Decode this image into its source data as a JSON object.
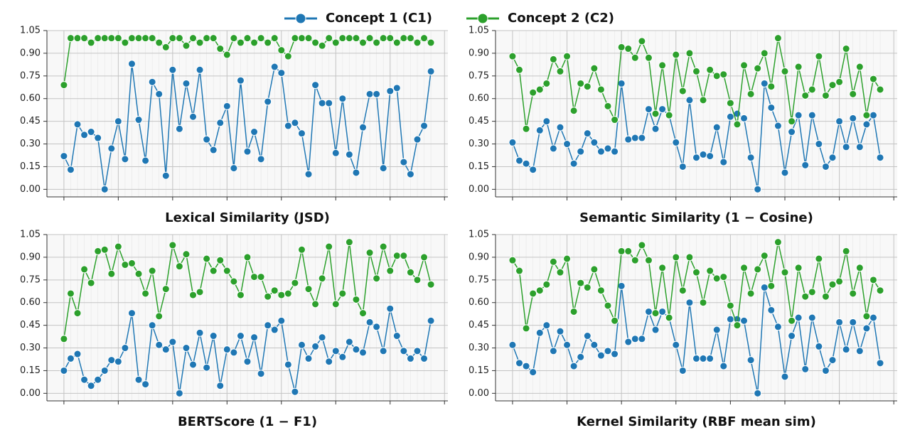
{
  "chart_data": [
    {
      "type": "line",
      "title": "Lexical Similarity (JSD)",
      "x": [
        0,
        1,
        2,
        3,
        4,
        5,
        6,
        7,
        8,
        9,
        10,
        11,
        12,
        13,
        14,
        15,
        16,
        17,
        18,
        19,
        20,
        21,
        22,
        23,
        24,
        25,
        26,
        27,
        28,
        29,
        30,
        31,
        32,
        33,
        34,
        35,
        36,
        37,
        38,
        39,
        40,
        41,
        42,
        43,
        44,
        45,
        46,
        47,
        48,
        49,
        50,
        51,
        52,
        53,
        54
      ],
      "xlim": [
        -2.5,
        56.5
      ],
      "xticks": [
        0,
        8,
        16,
        24,
        32,
        40,
        48,
        56
      ],
      "xtick_labels": false,
      "ylim": [
        -0.05,
        1.05
      ],
      "yticks": [
        {
          "value": 0,
          "label": "0.00"
        },
        0.15,
        {
          "value": 0.3,
          "label": "0.30"
        },
        0.45,
        {
          "value": 0.6,
          "label": "0.60"
        },
        0.75,
        {
          "value": 0.9,
          "label": "0.90"
        },
        1.05
      ],
      "grid": true,
      "series": [
        {
          "name": "Concept 1 (C1)",
          "color": "#1f77b4",
          "values": [
            0.22,
            0.13,
            0.43,
            0.36,
            0.38,
            0.34,
            0,
            0.27,
            0.45,
            0.2,
            0.83,
            0.46,
            0.19,
            0.71,
            0.63,
            0.09,
            0.79,
            0.4,
            0.7,
            0.48,
            0.79,
            0.33,
            0.26,
            0.44,
            0.55,
            0.14,
            0.72,
            0.25,
            0.38,
            0.2,
            0.58,
            0.81,
            0.77,
            0.42,
            0.44,
            0.37,
            0.1,
            0.69,
            0.57,
            0.57,
            0.24,
            0.6,
            0.23,
            0.11,
            0.41,
            0.63,
            0.63,
            0.14,
            0.65,
            0.67,
            0.18,
            0.1,
            0.33,
            0.42,
            0.78
          ]
        },
        {
          "name": "Concept 2 (C2)",
          "color": "#2ca02c",
          "values": [
            0.69,
            1,
            1,
            1,
            0.97,
            1,
            1,
            1,
            1,
            0.97,
            1,
            1,
            1,
            1,
            0.97,
            0.94,
            1,
            1,
            0.95,
            1,
            0.97,
            1,
            1,
            0.93,
            0.89,
            1,
            0.97,
            1,
            0.97,
            1,
            0.97,
            1,
            0.92,
            0.88,
            1,
            1,
            1,
            0.97,
            0.95,
            1,
            0.97,
            1,
            1,
            1,
            0.97,
            1,
            0.97,
            1,
            1,
            0.97,
            1,
            1,
            0.97,
            1,
            0.97
          ]
        }
      ]
    },
    {
      "type": "line",
      "title": "Semantic Similarity (1 − Cosine)",
      "x": [
        0,
        1,
        2,
        3,
        4,
        5,
        6,
        7,
        8,
        9,
        10,
        11,
        12,
        13,
        14,
        15,
        16,
        17,
        18,
        19,
        20,
        21,
        22,
        23,
        24,
        25,
        26,
        27,
        28,
        29,
        30,
        31,
        32,
        33,
        34,
        35,
        36,
        37,
        38,
        39,
        40,
        41,
        42,
        43,
        44,
        45,
        46,
        47,
        48,
        49,
        50,
        51,
        52,
        53,
        54
      ],
      "xlim": [
        -2.5,
        56.5
      ],
      "xticks": [
        0,
        8,
        16,
        24,
        32,
        40,
        48,
        56
      ],
      "xtick_labels": false,
      "ylim": [
        -0.05,
        1.05
      ],
      "yticks": [
        {
          "value": 0,
          "label": "0.00"
        },
        0.15,
        {
          "value": 0.3,
          "label": "0.30"
        },
        0.45,
        {
          "value": 0.6,
          "label": "0.60"
        },
        0.75,
        {
          "value": 0.9,
          "label": "0.90"
        },
        1.05
      ],
      "grid": true,
      "series": [
        {
          "color": "#1f77b4",
          "values": [
            0.31,
            0.19,
            0.17,
            0.13,
            0.39,
            0.45,
            0.27,
            0.41,
            0.3,
            0.17,
            0.25,
            0.37,
            0.31,
            0.25,
            0.27,
            0.25,
            0.7,
            0.33,
            0.34,
            0.34,
            0.53,
            0.4,
            0.53,
            0.49,
            0.31,
            0.15,
            0.59,
            0.21,
            0.23,
            0.22,
            0.41,
            0.18,
            0.48,
            0.5,
            0.47,
            0.21,
            0,
            0.7,
            0.54,
            0.42,
            0.11,
            0.38,
            0.49,
            0.16,
            0.49,
            0.3,
            0.15,
            0.21,
            0.45,
            0.28,
            0.47,
            0.28,
            0.43,
            0.49,
            0.21
          ]
        },
        {
          "color": "#2ca02c",
          "values": [
            0.88,
            0.79,
            0.4,
            0.64,
            0.66,
            0.7,
            0.86,
            0.78,
            0.88,
            0.52,
            0.7,
            0.68,
            0.8,
            0.66,
            0.55,
            0.46,
            0.94,
            0.93,
            0.87,
            0.98,
            0.87,
            0.5,
            0.82,
            0.49,
            0.89,
            0.65,
            0.9,
            0.78,
            0.59,
            0.79,
            0.75,
            0.76,
            0.57,
            0.43,
            0.82,
            0.63,
            0.8,
            0.9,
            0.68,
            1,
            0.78,
            0.45,
            0.81,
            0.62,
            0.66,
            0.88,
            0.62,
            0.69,
            0.71,
            0.93,
            0.63,
            0.81,
            0.49,
            0.73,
            0.66
          ]
        }
      ]
    },
    {
      "type": "line",
      "title": "BERTScore (1 − F1)",
      "x": [
        0,
        1,
        2,
        3,
        4,
        5,
        6,
        7,
        8,
        9,
        10,
        11,
        12,
        13,
        14,
        15,
        16,
        17,
        18,
        19,
        20,
        21,
        22,
        23,
        24,
        25,
        26,
        27,
        28,
        29,
        30,
        31,
        32,
        33,
        34,
        35,
        36,
        37,
        38,
        39,
        40,
        41,
        42,
        43,
        44,
        45,
        46,
        47,
        48,
        49,
        50,
        51,
        52,
        53,
        54
      ],
      "xlim": [
        -2.5,
        56.5
      ],
      "xticks": [
        0,
        8,
        16,
        24,
        32,
        40,
        48,
        56
      ],
      "xtick_labels": false,
      "ylim": [
        -0.05,
        1.05
      ],
      "yticks": [
        {
          "value": 0,
          "label": "0.00"
        },
        0.15,
        {
          "value": 0.3,
          "label": "0.30"
        },
        0.45,
        {
          "value": 0.6,
          "label": "0.60"
        },
        0.75,
        {
          "value": 0.9,
          "label": "0.90"
        },
        1.05
      ],
      "grid": true,
      "series": [
        {
          "color": "#1f77b4",
          "values": [
            0.15,
            0.23,
            0.26,
            0.09,
            0.05,
            0.09,
            0.15,
            0.22,
            0.21,
            0.3,
            0.53,
            0.09,
            0.06,
            0.45,
            0.32,
            0.29,
            0.34,
            0,
            0.3,
            0.19,
            0.4,
            0.17,
            0.38,
            0.05,
            0.29,
            0.27,
            0.38,
            0.21,
            0.37,
            0.13,
            0.45,
            0.42,
            0.48,
            0.19,
            0.01,
            0.32,
            0.23,
            0.31,
            0.37,
            0.21,
            0.28,
            0.24,
            0.34,
            0.29,
            0.27,
            0.47,
            0.44,
            0.28,
            0.56,
            0.38,
            0.28,
            0.23,
            0.28,
            0.23,
            0.48
          ]
        },
        {
          "color": "#2ca02c",
          "values": [
            0.36,
            0.66,
            0.53,
            0.82,
            0.73,
            0.94,
            0.95,
            0.79,
            0.97,
            0.85,
            0.86,
            0.79,
            0.66,
            0.81,
            0.51,
            0.69,
            0.98,
            0.84,
            0.92,
            0.65,
            0.67,
            0.89,
            0.81,
            0.88,
            0.81,
            0.74,
            0.65,
            0.9,
            0.77,
            0.77,
            0.64,
            0.68,
            0.65,
            0.66,
            0.73,
            0.95,
            0.69,
            0.59,
            0.76,
            0.97,
            0.59,
            0.66,
            1,
            0.62,
            0.53,
            0.93,
            0.76,
            0.97,
            0.81,
            0.91,
            0.91,
            0.8,
            0.75,
            0.9,
            0.72
          ]
        }
      ]
    },
    {
      "type": "line",
      "title": "Kernel Similarity (RBF mean sim)",
      "x": [
        0,
        1,
        2,
        3,
        4,
        5,
        6,
        7,
        8,
        9,
        10,
        11,
        12,
        13,
        14,
        15,
        16,
        17,
        18,
        19,
        20,
        21,
        22,
        23,
        24,
        25,
        26,
        27,
        28,
        29,
        30,
        31,
        32,
        33,
        34,
        35,
        36,
        37,
        38,
        39,
        40,
        41,
        42,
        43,
        44,
        45,
        46,
        47,
        48,
        49,
        50,
        51,
        52,
        53,
        54
      ],
      "xlim": [
        -2.5,
        56.5
      ],
      "xticks": [
        0,
        8,
        16,
        24,
        32,
        40,
        48,
        56
      ],
      "xtick_labels": false,
      "ylim": [
        -0.05,
        1.05
      ],
      "yticks": [
        {
          "value": 0,
          "label": "0.00"
        },
        0.15,
        {
          "value": 0.3,
          "label": "0.30"
        },
        0.45,
        {
          "value": 0.6,
          "label": "0.60"
        },
        0.75,
        {
          "value": 0.9,
          "label": "0.90"
        },
        1.05
      ],
      "grid": true,
      "series": [
        {
          "color": "#1f77b4",
          "values": [
            0.32,
            0.2,
            0.18,
            0.14,
            0.4,
            0.45,
            0.28,
            0.41,
            0.32,
            0.18,
            0.24,
            0.38,
            0.32,
            0.25,
            0.28,
            0.26,
            0.71,
            0.34,
            0.36,
            0.36,
            0.54,
            0.42,
            0.54,
            0.5,
            0.32,
            0.15,
            0.6,
            0.23,
            0.23,
            0.23,
            0.42,
            0.18,
            0.49,
            0.49,
            0.48,
            0.22,
            0,
            0.7,
            0.55,
            0.44,
            0.11,
            0.38,
            0.5,
            0.16,
            0.5,
            0.31,
            0.15,
            0.22,
            0.47,
            0.29,
            0.47,
            0.28,
            0.43,
            0.5,
            0.2
          ]
        },
        {
          "color": "#2ca02c",
          "values": [
            0.88,
            0.81,
            0.43,
            0.66,
            0.68,
            0.72,
            0.87,
            0.8,
            0.89,
            0.54,
            0.73,
            0.7,
            0.82,
            0.68,
            0.58,
            0.48,
            0.94,
            0.94,
            0.88,
            0.98,
            0.88,
            0.53,
            0.83,
            0.5,
            0.9,
            0.68,
            0.9,
            0.8,
            0.6,
            0.81,
            0.76,
            0.77,
            0.58,
            0.45,
            0.83,
            0.66,
            0.82,
            0.91,
            0.71,
            1,
            0.8,
            0.48,
            0.83,
            0.64,
            0.67,
            0.89,
            0.64,
            0.72,
            0.74,
            0.94,
            0.66,
            0.83,
            0.51,
            0.75,
            0.68
          ]
        }
      ]
    }
  ]
}
